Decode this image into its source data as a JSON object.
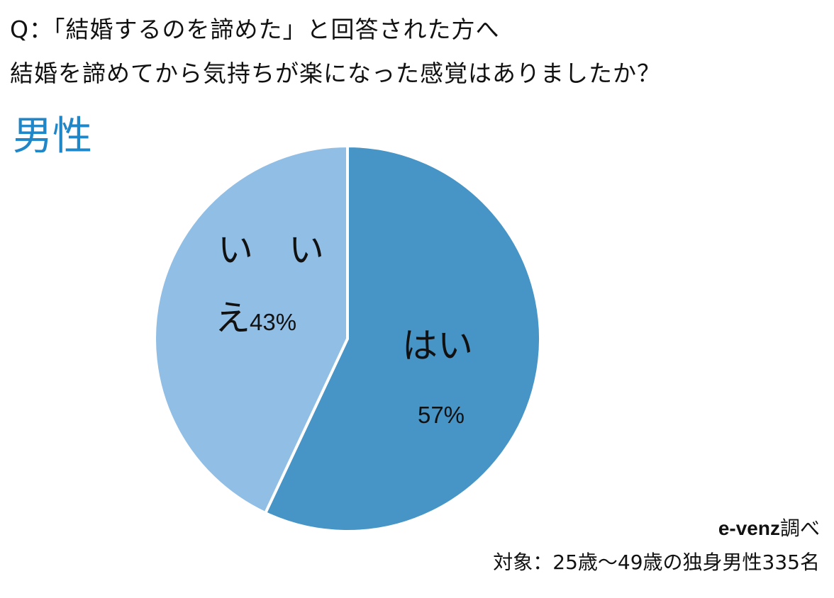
{
  "question": {
    "line1": "Q：「結婚するのを諦めた」と回答された方へ",
    "line2": "結婚を諦めてから気持ちが楽になった感覚はありましたか？"
  },
  "group_label": "男性",
  "colors": {
    "yes": "#4794c6",
    "no": "#91bee5",
    "group_label": "#1f86c8"
  },
  "chart_data": {
    "type": "pie",
    "title": "男性",
    "categories": [
      "はい",
      "いいえ"
    ],
    "values": [
      57,
      43
    ],
    "labels": {
      "yes_name": "はい",
      "yes_value": "57%",
      "no_line1": "い　い",
      "no_line2": "え",
      "no_value": "43%"
    },
    "legend": "none"
  },
  "source": {
    "brand": "e-venz",
    "suffix": "調べ",
    "target": "対象：25歳～49歳の独身男性335名"
  }
}
